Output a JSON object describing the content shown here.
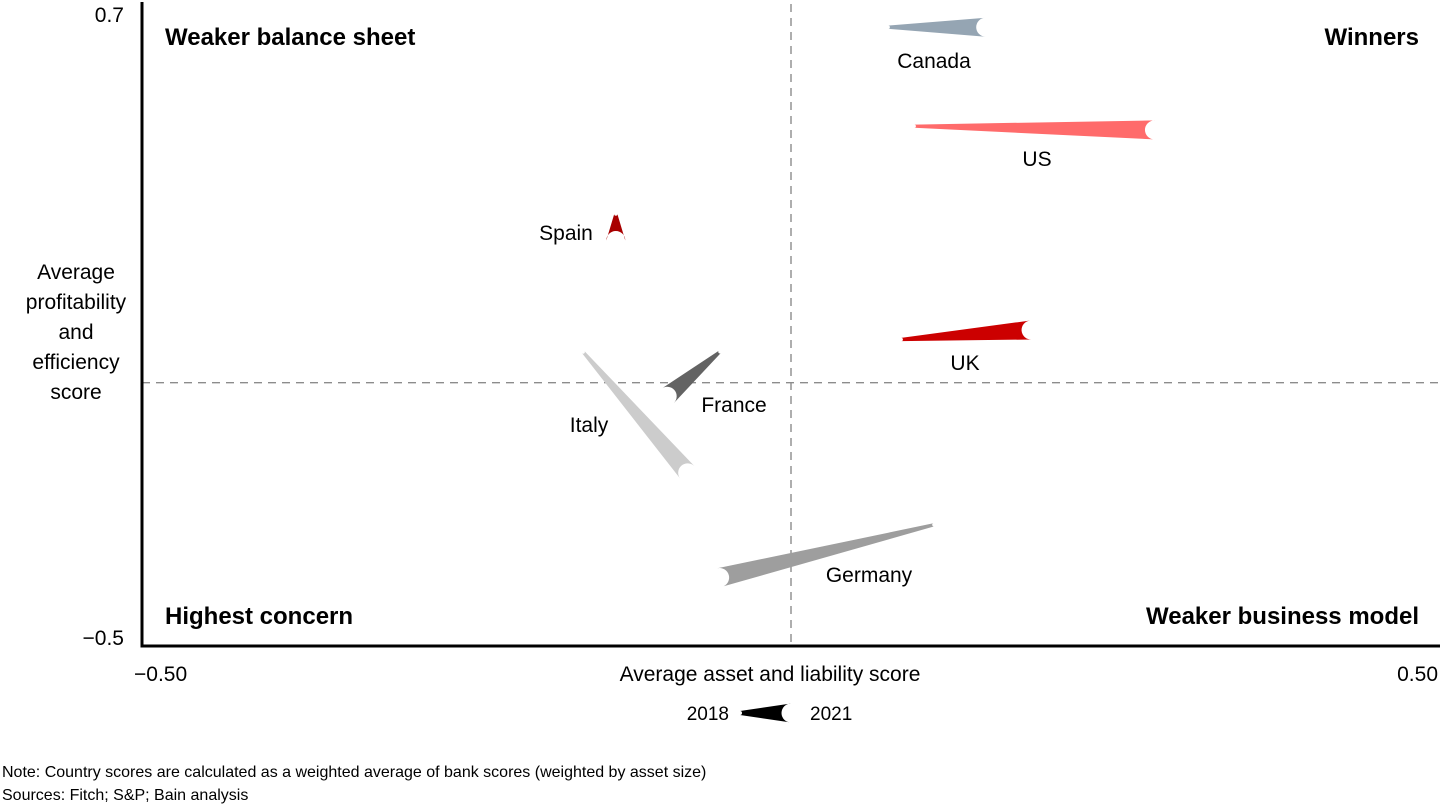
{
  "chart_data": {
    "type": "scatter",
    "variant": "movement-wedges",
    "xlabel": "Average asset and liability score",
    "ylabel": [
      "Average",
      "profitability",
      "and",
      "efficiency",
      "score"
    ],
    "xlim": [
      -0.5,
      0.5
    ],
    "ylim": [
      -0.5,
      0.7
    ],
    "x_tick_labels": [
      "−0.50",
      "0.50"
    ],
    "y_tick_labels": [
      "−0.5",
      "0.7"
    ],
    "reference_lines": {
      "x": 0.0,
      "y": 0.0
    },
    "quadrants": {
      "top_left": "Weaker balance sheet",
      "top_right": "Winners",
      "bottom_left": "Highest concern",
      "bottom_right": "Weaker business model"
    },
    "legend": {
      "start": "2018",
      "end": "2021"
    },
    "series": [
      {
        "name": "Canada",
        "color": "#95a5b3",
        "x2018": 0.075,
        "y2018": 0.675,
        "x2021": 0.15,
        "y2021": 0.675
      },
      {
        "name": "US",
        "color": "#ff6b6b",
        "x2018": 0.095,
        "y2018": 0.487,
        "x2021": 0.28,
        "y2021": 0.48
      },
      {
        "name": "Spain",
        "color": "#a80000",
        "x2018": -0.135,
        "y2018": 0.32,
        "x2021": -0.135,
        "y2021": 0.27
      },
      {
        "name": "UK",
        "color": "#cc0000",
        "x2018": 0.085,
        "y2018": 0.082,
        "x2021": 0.185,
        "y2021": 0.1
      },
      {
        "name": "France",
        "color": "#636363",
        "x2018": -0.055,
        "y2018": 0.058,
        "x2021": -0.095,
        "y2021": -0.025
      },
      {
        "name": "Italy",
        "color": "#cccccc",
        "x2018": -0.16,
        "y2018": 0.058,
        "x2021": -0.08,
        "y2021": -0.17
      },
      {
        "name": "Germany",
        "color": "#9e9e9e",
        "x2018": 0.11,
        "y2018": -0.27,
        "x2021": -0.055,
        "y2021": -0.37
      }
    ]
  },
  "footnotes": {
    "note": "Note: Country scores are calculated as a weighted average of bank scores (weighted by asset size)",
    "sources": "Sources: Fitch; S&P; Bain analysis"
  }
}
